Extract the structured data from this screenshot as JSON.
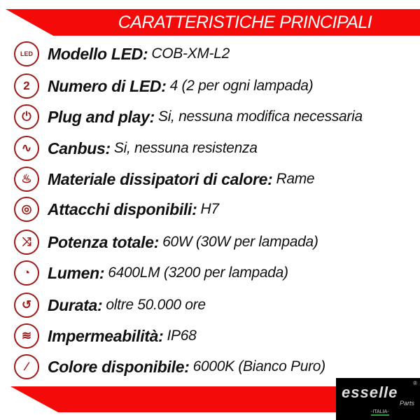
{
  "header": {
    "title": "CARATTERISTICHE PRINCIPALI"
  },
  "colors": {
    "accent": "#f50a0a",
    "icon": "#a01818"
  },
  "features": [
    {
      "icon": "led-icon",
      "glyph": "LED",
      "label": "Modello LED:",
      "value": "COB-XM-L2"
    },
    {
      "icon": "number-two-icon",
      "glyph": "2",
      "label": "Numero di LED:",
      "value": "4 (2 per ogni lampada)"
    },
    {
      "icon": "plug-icon",
      "glyph": "⏻",
      "label": "Plug and play:",
      "value": "Si, nessuna modifica necessaria"
    },
    {
      "icon": "resistor-icon",
      "glyph": "∿",
      "label": "Canbus:",
      "value": "Si, nessuna resistenza"
    },
    {
      "icon": "heat-sink-icon",
      "glyph": "♨",
      "label": "Materiale dissipatori di calore:",
      "value": "Rame"
    },
    {
      "icon": "socket-icon",
      "glyph": "◎",
      "label": "Attacchi disponibili:",
      "value": "H7"
    },
    {
      "icon": "shuffle-power-icon",
      "glyph": "⤨",
      "label": "Potenza totale:",
      "value": "60W (30W per lampada)"
    },
    {
      "icon": "gauge-icon",
      "glyph": "◔",
      "label": "Lumen:",
      "value": "6400LM (3200 per lampada)"
    },
    {
      "icon": "clock-history-icon",
      "glyph": "↺",
      "label": "Durata:",
      "value": "oltre 50.000 ore"
    },
    {
      "icon": "water-splash-icon",
      "glyph": "≋",
      "label": "Impermeabilità:",
      "value": "IP68"
    },
    {
      "icon": "paintbrush-icon",
      "glyph": "⁄",
      "label": "Colore disponibile:",
      "value": "6000K (Bianco Puro)"
    }
  ],
  "logo": {
    "name": "esselle",
    "sub": "Parts",
    "country": "-ITALIA-",
    "reg": "®"
  }
}
